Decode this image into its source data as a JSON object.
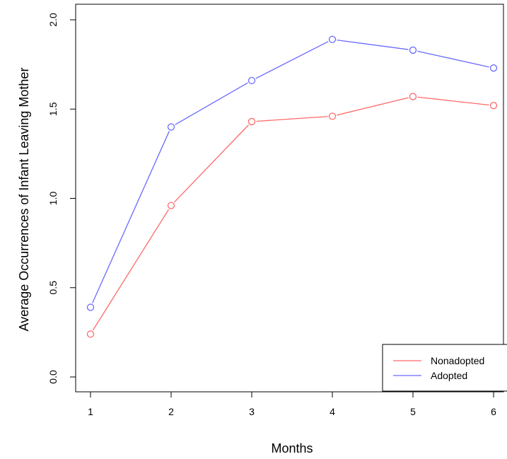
{
  "chart_data": {
    "type": "line",
    "title": "",
    "xlabel": "Months",
    "ylabel": "Average Occurrences of Infant Leaving Mother",
    "x": [
      1,
      2,
      3,
      4,
      5,
      6
    ],
    "xticks": [
      "1",
      "2",
      "3",
      "4",
      "5",
      "6"
    ],
    "yticks": [
      "0.0",
      "0.5",
      "1.0",
      "1.5",
      "2.0"
    ],
    "ylim": [
      0,
      2
    ],
    "xlim": [
      1,
      6
    ],
    "grid": false,
    "legend_position": "bottom-right",
    "markers": "open-circle",
    "series": [
      {
        "name": "Nonadopted",
        "color": "#ff6a6a",
        "values": [
          0.24,
          0.96,
          1.43,
          1.46,
          1.57,
          1.52
        ]
      },
      {
        "name": "Adopted",
        "color": "#6a6aff",
        "values": [
          0.39,
          1.4,
          1.66,
          1.89,
          1.83,
          1.73
        ]
      }
    ]
  }
}
